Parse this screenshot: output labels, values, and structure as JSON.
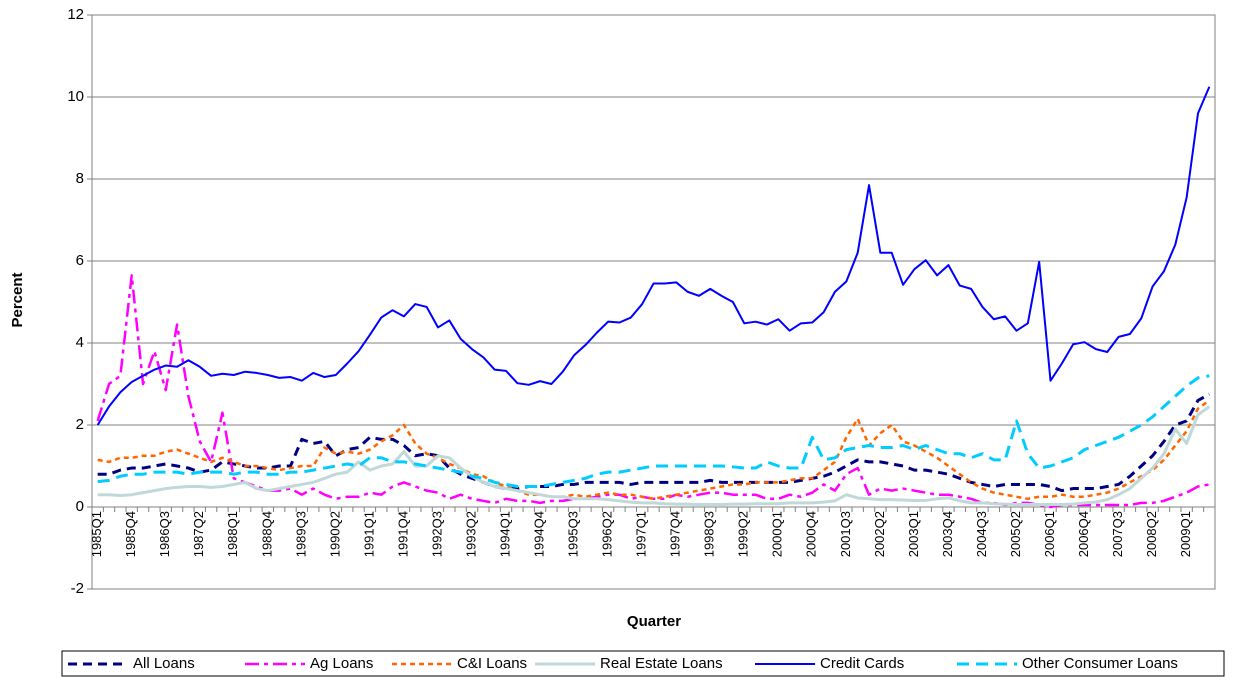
{
  "chart_data": {
    "type": "line",
    "x_label": "Quarter",
    "y_label": "Percent",
    "categories": [
      "1985Q1",
      null,
      null,
      "1985Q4",
      null,
      null,
      "1986Q3",
      null,
      null,
      "1987Q2",
      null,
      null,
      "1988Q1",
      null,
      null,
      "1988Q4",
      null,
      null,
      "1989Q3",
      null,
      null,
      "1990Q2",
      null,
      null,
      "1991Q1",
      null,
      null,
      "1991Q4",
      null,
      null,
      "1992Q3",
      null,
      null,
      "1993Q2",
      null,
      null,
      "1994Q1",
      null,
      null,
      "1994Q4",
      null,
      null,
      "1995Q3",
      null,
      null,
      "1996Q2",
      null,
      null,
      "1997Q1",
      null,
      null,
      "1997Q4",
      null,
      null,
      "1998Q3",
      null,
      null,
      "1999Q2",
      null,
      null,
      "2000Q1",
      null,
      null,
      "2000Q4",
      null,
      null,
      "2001Q3",
      null,
      null,
      "2002Q2",
      null,
      null,
      "2003Q1",
      null,
      null,
      "2003Q4",
      null,
      null,
      "2004Q3",
      null,
      null,
      "2005Q2",
      null,
      null,
      "2006Q1",
      null,
      null,
      "2006Q4",
      null,
      null,
      "2007Q3",
      null,
      null,
      "2008Q2",
      null,
      null,
      "2009Q1",
      null,
      null
    ],
    "ylim": [
      -2,
      12
    ],
    "yticks": [
      -2,
      0,
      2,
      4,
      6,
      8,
      10,
      12
    ],
    "grid": true,
    "series": [
      {
        "name": "All Loans",
        "color": "#000080",
        "values": [
          0.8,
          0.8,
          0.9,
          0.95,
          0.95,
          1.0,
          1.05,
          1.0,
          0.95,
          0.85,
          0.9,
          1.1,
          1.05,
          1.0,
          0.95,
          0.95,
          1.0,
          1.0,
          1.65,
          1.55,
          1.6,
          1.25,
          1.4,
          1.45,
          1.7,
          1.65,
          1.65,
          1.5,
          1.25,
          1.3,
          1.25,
          0.95,
          0.8,
          0.7,
          0.6,
          0.5,
          0.45,
          0.45,
          0.5,
          0.5,
          0.5,
          0.55,
          0.55,
          0.6,
          0.6,
          0.6,
          0.6,
          0.55,
          0.6,
          0.6,
          0.6,
          0.6,
          0.6,
          0.6,
          0.65,
          0.6,
          0.6,
          0.6,
          0.6,
          0.6,
          0.6,
          0.6,
          0.65,
          0.7,
          0.75,
          0.85,
          1.0,
          1.15,
          1.1,
          1.1,
          1.05,
          1.0,
          0.9,
          0.9,
          0.85,
          0.8,
          0.7,
          0.6,
          0.55,
          0.5,
          0.55,
          0.55,
          0.55,
          0.55,
          0.5,
          0.4,
          0.45,
          0.45,
          0.45,
          0.5,
          0.55,
          0.75,
          1.0,
          1.25,
          1.6,
          2.0,
          2.1,
          2.6,
          2.75
        ]
      },
      {
        "name": "Ag Loans",
        "color": "#ff00ff",
        "values": [
          2.1,
          3.0,
          3.2,
          5.65,
          3.0,
          3.8,
          2.85,
          4.45,
          2.7,
          1.6,
          1.1,
          2.3,
          0.7,
          0.6,
          0.5,
          0.4,
          0.4,
          0.45,
          0.3,
          0.45,
          0.3,
          0.2,
          0.25,
          0.25,
          0.35,
          0.3,
          0.5,
          0.6,
          0.5,
          0.4,
          0.35,
          0.2,
          0.3,
          0.2,
          0.15,
          0.1,
          0.2,
          0.15,
          0.15,
          0.1,
          0.15,
          0.15,
          0.2,
          0.2,
          0.25,
          0.3,
          0.3,
          0.2,
          0.25,
          0.2,
          0.2,
          0.3,
          0.25,
          0.3,
          0.35,
          0.35,
          0.3,
          0.3,
          0.3,
          0.2,
          0.2,
          0.3,
          0.25,
          0.35,
          0.55,
          0.4,
          0.8,
          0.95,
          0.3,
          0.45,
          0.4,
          0.45,
          0.4,
          0.35,
          0.3,
          0.3,
          0.25,
          0.2,
          0.1,
          0.1,
          0.05,
          0.1,
          0.1,
          0.05,
          0.0,
          0.05,
          0.05,
          0.05,
          0.05,
          0.05,
          0.05,
          0.05,
          0.1,
          0.1,
          0.15,
          0.25,
          0.35,
          0.5,
          0.55
        ]
      },
      {
        "name": "C&I Loans",
        "color": "#ff6600",
        "values": [
          1.15,
          1.1,
          1.2,
          1.2,
          1.25,
          1.25,
          1.35,
          1.4,
          1.3,
          1.2,
          1.1,
          1.2,
          1.1,
          1.0,
          1.0,
          0.95,
          0.9,
          0.95,
          1.0,
          1.0,
          1.45,
          1.3,
          1.35,
          1.3,
          1.4,
          1.6,
          1.75,
          2.0,
          1.55,
          1.3,
          1.2,
          1.05,
          0.95,
          0.8,
          0.75,
          0.6,
          0.5,
          0.4,
          0.3,
          0.3,
          0.25,
          0.25,
          0.3,
          0.25,
          0.3,
          0.35,
          0.3,
          0.3,
          0.25,
          0.2,
          0.25,
          0.3,
          0.35,
          0.4,
          0.45,
          0.5,
          0.55,
          0.55,
          0.6,
          0.6,
          0.6,
          0.65,
          0.7,
          0.7,
          0.9,
          1.1,
          1.7,
          2.15,
          1.5,
          1.8,
          2.0,
          1.6,
          1.5,
          1.35,
          1.2,
          1.0,
          0.8,
          0.6,
          0.45,
          0.35,
          0.3,
          0.25,
          0.2,
          0.25,
          0.25,
          0.3,
          0.25,
          0.25,
          0.3,
          0.35,
          0.45,
          0.6,
          0.75,
          0.9,
          1.15,
          1.5,
          1.85,
          2.4,
          2.6
        ]
      },
      {
        "name": "Real Estate Loans",
        "color": "#c0d8d8",
        "values": [
          0.3,
          0.3,
          0.28,
          0.3,
          0.35,
          0.4,
          0.45,
          0.48,
          0.5,
          0.5,
          0.48,
          0.5,
          0.55,
          0.6,
          0.45,
          0.4,
          0.45,
          0.5,
          0.55,
          0.6,
          0.7,
          0.8,
          0.85,
          1.1,
          0.9,
          1.0,
          1.05,
          1.35,
          1.0,
          1.0,
          1.25,
          1.2,
          0.95,
          0.75,
          0.6,
          0.5,
          0.45,
          0.4,
          0.35,
          0.3,
          0.25,
          0.25,
          0.2,
          0.2,
          0.2,
          0.18,
          0.15,
          0.12,
          0.1,
          0.1,
          0.08,
          0.07,
          0.07,
          0.06,
          0.06,
          0.06,
          0.07,
          0.07,
          0.08,
          0.08,
          0.08,
          0.1,
          0.1,
          0.1,
          0.12,
          0.15,
          0.3,
          0.22,
          0.2,
          0.18,
          0.18,
          0.17,
          0.16,
          0.16,
          0.2,
          0.22,
          0.15,
          0.1,
          0.1,
          0.08,
          0.07,
          0.06,
          0.06,
          0.06,
          0.06,
          0.06,
          0.07,
          0.1,
          0.12,
          0.18,
          0.3,
          0.45,
          0.7,
          0.95,
          1.3,
          1.9,
          1.55,
          2.25,
          2.45
        ]
      },
      {
        "name": "Credit Cards",
        "color": "#0000ff",
        "values": [
          2.0,
          2.45,
          2.8,
          3.05,
          3.2,
          3.35,
          3.45,
          3.42,
          3.58,
          3.42,
          3.2,
          3.25,
          3.22,
          3.3,
          3.27,
          3.22,
          3.15,
          3.17,
          3.08,
          3.27,
          3.17,
          3.22,
          3.5,
          3.8,
          4.2,
          4.62,
          4.8,
          4.65,
          4.95,
          4.88,
          4.38,
          4.55,
          4.1,
          3.85,
          3.65,
          3.35,
          3.32,
          3.02,
          2.98,
          3.07,
          3.0,
          3.3,
          3.7,
          3.95,
          4.25,
          4.52,
          4.5,
          4.62,
          4.95,
          5.45,
          5.45,
          5.48,
          5.25,
          5.15,
          5.32,
          5.15,
          5.0,
          4.48,
          4.52,
          4.45,
          4.58,
          4.3,
          4.48,
          4.5,
          4.75,
          5.25,
          5.5,
          6.2,
          7.85,
          6.2,
          6.2,
          5.42,
          5.8,
          6.02,
          5.65,
          5.9,
          5.4,
          5.32,
          4.88,
          4.58,
          4.65,
          4.3,
          4.48,
          5.98,
          3.08,
          3.5,
          3.97,
          4.02,
          3.85,
          3.78,
          4.15,
          4.22,
          4.6,
          5.38,
          5.75,
          6.4,
          7.55,
          9.6,
          10.25
        ]
      },
      {
        "name": "Other Consumer Loans",
        "color": "#00ccff",
        "values": [
          0.62,
          0.65,
          0.75,
          0.8,
          0.8,
          0.85,
          0.85,
          0.85,
          0.8,
          0.85,
          0.85,
          0.85,
          0.8,
          0.85,
          0.85,
          0.8,
          0.8,
          0.85,
          0.85,
          0.9,
          0.95,
          1.0,
          1.05,
          1.0,
          1.2,
          1.2,
          1.1,
          1.1,
          1.05,
          1.0,
          0.95,
          0.9,
          0.85,
          0.75,
          0.7,
          0.6,
          0.55,
          0.5,
          0.5,
          0.5,
          0.55,
          0.6,
          0.65,
          0.7,
          0.8,
          0.85,
          0.85,
          0.9,
          0.95,
          1.0,
          1.0,
          1.0,
          1.0,
          1.0,
          1.0,
          1.0,
          0.98,
          0.95,
          0.95,
          1.1,
          1.0,
          0.95,
          0.95,
          1.7,
          1.15,
          1.2,
          1.4,
          1.45,
          1.5,
          1.45,
          1.45,
          1.5,
          1.4,
          1.5,
          1.4,
          1.3,
          1.3,
          1.2,
          1.3,
          1.15,
          1.15,
          2.1,
          1.3,
          0.95,
          1.0,
          1.1,
          1.2,
          1.4,
          1.5,
          1.6,
          1.7,
          1.85,
          2.0,
          2.2,
          2.45,
          2.7,
          2.95,
          3.15,
          3.2
        ]
      }
    ]
  }
}
